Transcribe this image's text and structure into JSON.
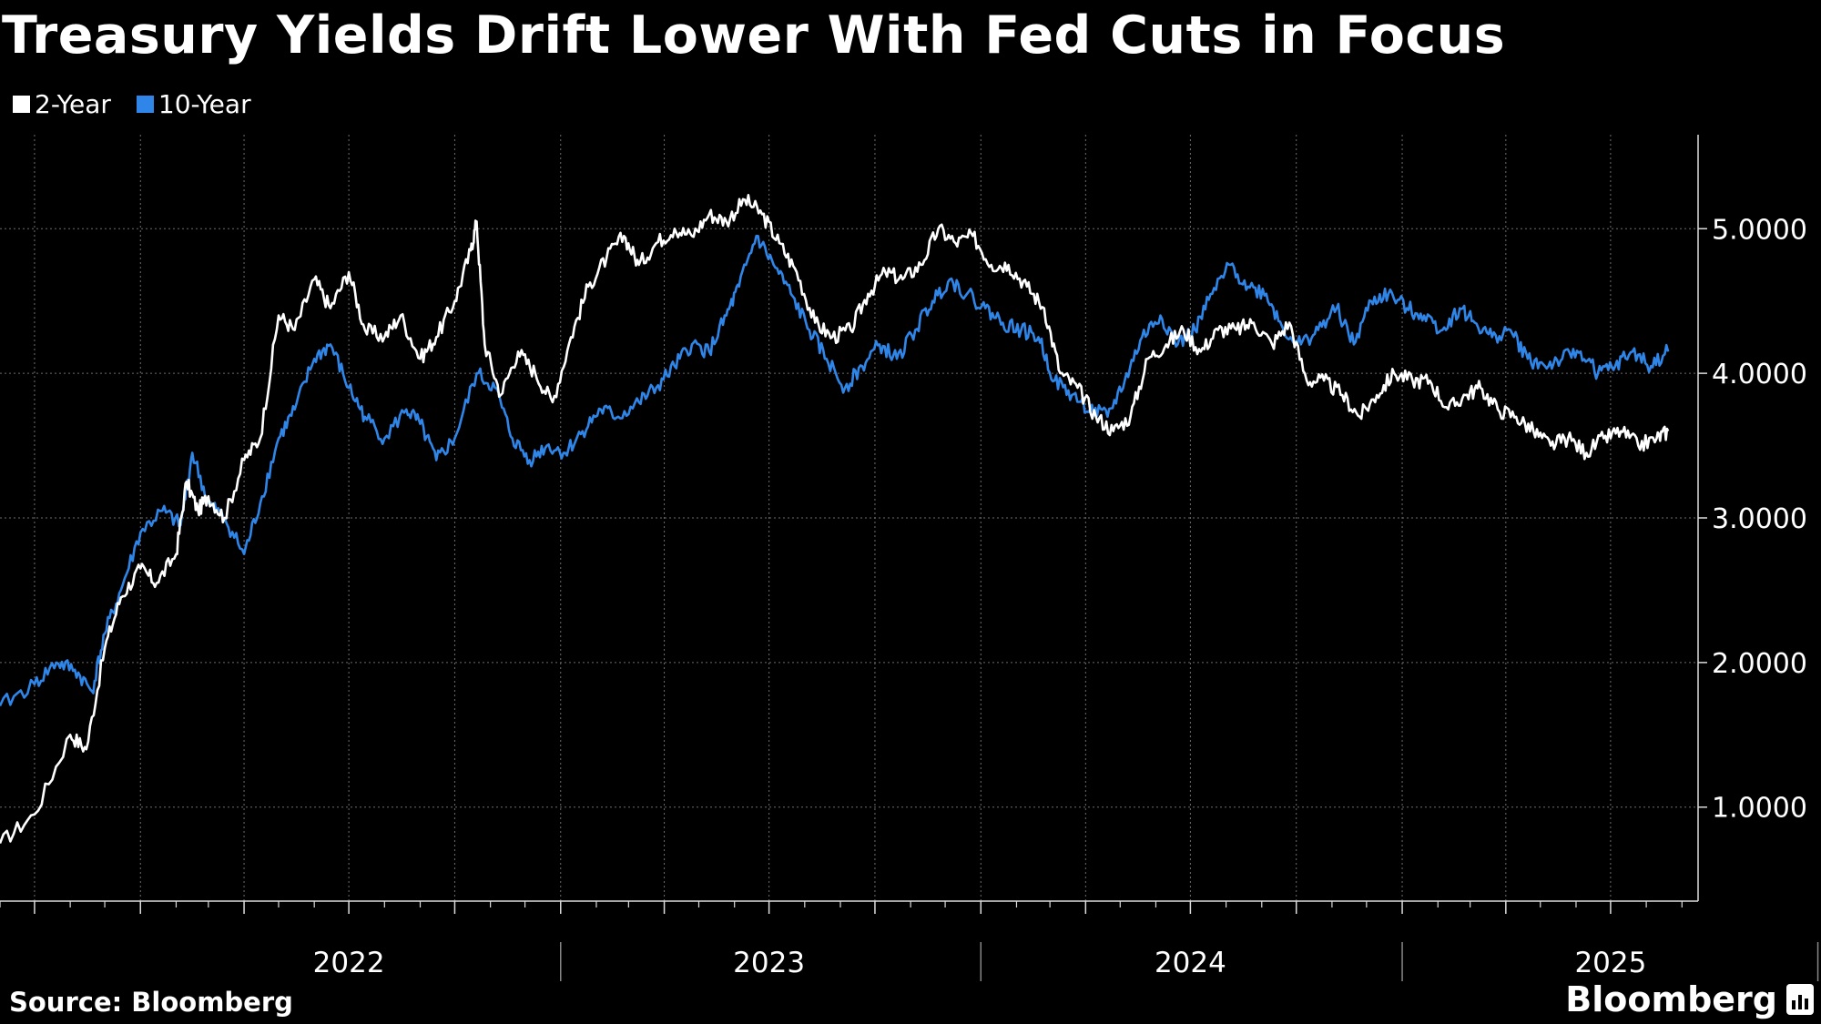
{
  "title": "Treasury Yields Drift Lower With Fed Cuts in Focus",
  "source": "Source: Bloomberg",
  "brand": "Bloomberg",
  "colors": {
    "two_year": "#ffffff",
    "ten_year": "#2f86e8",
    "background": "#000000",
    "grid": "#6e6e6e"
  },
  "chart_data": {
    "type": "line",
    "title": "Treasury Yields Drift Lower With Fed Cuts in Focus",
    "xlabel": "",
    "ylabel": "",
    "year_labels": [
      "2022",
      "2023",
      "2024",
      "2025"
    ],
    "yticks": [
      "1.0000",
      "2.0000",
      "3.0000",
      "4.0000",
      "5.0000"
    ],
    "ylim": [
      0.35,
      5.65
    ],
    "xlim": [
      "2021-09-01",
      "2025-09-15"
    ],
    "y_axis_side": "right",
    "grid": true,
    "legend_position": "top-left",
    "series": [
      {
        "name": "2-Year",
        "color": "#ffffff",
        "points": [
          [
            "2021-09-01",
            0.75
          ],
          [
            "2021-10-01",
            0.95
          ],
          [
            "2021-11-01",
            1.5
          ],
          [
            "2021-11-15",
            1.4
          ],
          [
            "2021-12-01",
            2.1
          ],
          [
            "2021-12-15",
            2.45
          ],
          [
            "2022-01-01",
            2.65
          ],
          [
            "2022-01-15",
            2.55
          ],
          [
            "2022-02-01",
            2.75
          ],
          [
            "2022-02-10",
            3.25
          ],
          [
            "2022-02-20",
            3.05
          ],
          [
            "2022-03-01",
            3.15
          ],
          [
            "2022-03-15",
            3.0
          ],
          [
            "2022-04-01",
            3.4
          ],
          [
            "2022-04-15",
            3.55
          ],
          [
            "2022-05-01",
            4.4
          ],
          [
            "2022-05-15",
            4.3
          ],
          [
            "2022-06-01",
            4.65
          ],
          [
            "2022-06-15",
            4.45
          ],
          [
            "2022-07-01",
            4.7
          ],
          [
            "2022-07-15",
            4.3
          ],
          [
            "2022-08-01",
            4.25
          ],
          [
            "2022-08-15",
            4.4
          ],
          [
            "2022-09-01",
            4.1
          ],
          [
            "2022-09-15",
            4.25
          ],
          [
            "2022-10-01",
            4.5
          ],
          [
            "2022-10-15",
            4.85
          ],
          [
            "2022-10-20",
            5.05
          ],
          [
            "2022-10-27",
            4.2
          ],
          [
            "2022-11-10",
            3.85
          ],
          [
            "2022-11-25",
            4.15
          ],
          [
            "2022-12-10",
            4.0
          ],
          [
            "2022-12-25",
            3.8
          ],
          [
            "2023-01-10",
            4.25
          ],
          [
            "2023-01-25",
            4.6
          ],
          [
            "2023-02-10",
            4.8
          ],
          [
            "2023-02-25",
            4.95
          ],
          [
            "2023-03-10",
            4.75
          ],
          [
            "2023-03-25",
            4.9
          ],
          [
            "2023-04-10",
            5.0
          ],
          [
            "2023-04-25",
            4.95
          ],
          [
            "2023-05-10",
            5.1
          ],
          [
            "2023-05-25",
            5.05
          ],
          [
            "2023-06-10",
            5.2
          ],
          [
            "2023-06-25",
            5.1
          ],
          [
            "2023-07-10",
            4.9
          ],
          [
            "2023-07-25",
            4.7
          ],
          [
            "2023-08-10",
            4.35
          ],
          [
            "2023-08-25",
            4.25
          ],
          [
            "2023-09-10",
            4.3
          ],
          [
            "2023-09-25",
            4.55
          ],
          [
            "2023-10-10",
            4.7
          ],
          [
            "2023-10-25",
            4.65
          ],
          [
            "2023-11-10",
            4.75
          ],
          [
            "2023-11-25",
            5.0
          ],
          [
            "2023-12-10",
            4.9
          ],
          [
            "2023-12-25",
            4.95
          ],
          [
            "2024-01-10",
            4.75
          ],
          [
            "2024-01-25",
            4.75
          ],
          [
            "2024-02-10",
            4.6
          ],
          [
            "2024-02-25",
            4.45
          ],
          [
            "2024-03-10",
            4.0
          ],
          [
            "2024-03-25",
            3.9
          ],
          [
            "2024-04-10",
            3.7
          ],
          [
            "2024-04-25",
            3.6
          ],
          [
            "2024-05-10",
            3.7
          ],
          [
            "2024-05-25",
            4.1
          ],
          [
            "2024-06-10",
            4.2
          ],
          [
            "2024-06-25",
            4.3
          ],
          [
            "2024-07-10",
            4.15
          ],
          [
            "2024-07-25",
            4.3
          ],
          [
            "2024-08-10",
            4.3
          ],
          [
            "2024-08-25",
            4.35
          ],
          [
            "2024-09-10",
            4.2
          ],
          [
            "2024-09-25",
            4.35
          ],
          [
            "2024-10-10",
            3.95
          ],
          [
            "2024-10-25",
            3.95
          ],
          [
            "2024-11-10",
            3.85
          ],
          [
            "2024-11-25",
            3.7
          ],
          [
            "2024-12-10",
            3.85
          ],
          [
            "2024-12-25",
            4.0
          ],
          [
            "2025-01-10",
            3.95
          ],
          [
            "2025-01-25",
            3.95
          ],
          [
            "2025-02-10",
            3.75
          ],
          [
            "2025-02-25",
            3.85
          ],
          [
            "2025-03-10",
            3.9
          ],
          [
            "2025-03-25",
            3.75
          ],
          [
            "2025-04-10",
            3.7
          ],
          [
            "2025-04-25",
            3.6
          ],
          [
            "2025-05-10",
            3.5
          ],
          [
            "2025-05-25",
            3.55
          ],
          [
            "2025-06-10",
            3.45
          ],
          [
            "2025-06-25",
            3.55
          ],
          [
            "2025-07-10",
            3.6
          ],
          [
            "2025-07-25",
            3.5
          ],
          [
            "2025-08-10",
            3.55
          ],
          [
            "2025-08-20",
            3.6
          ]
        ]
      },
      {
        "name": "10-Year",
        "color": "#2f86e8",
        "points": [
          [
            "2021-09-01",
            1.7
          ],
          [
            "2021-10-01",
            1.85
          ],
          [
            "2021-10-20",
            2.0
          ],
          [
            "2021-11-05",
            1.95
          ],
          [
            "2021-11-20",
            1.8
          ],
          [
            "2021-12-01",
            2.2
          ],
          [
            "2021-12-15",
            2.5
          ],
          [
            "2022-01-01",
            2.9
          ],
          [
            "2022-01-20",
            3.05
          ],
          [
            "2022-02-05",
            2.95
          ],
          [
            "2022-02-15",
            3.45
          ],
          [
            "2022-03-01",
            3.1
          ],
          [
            "2022-03-15",
            3.0
          ],
          [
            "2022-04-01",
            2.75
          ],
          [
            "2022-04-15",
            3.1
          ],
          [
            "2022-05-01",
            3.55
          ],
          [
            "2022-05-15",
            3.75
          ],
          [
            "2022-06-01",
            4.1
          ],
          [
            "2022-06-15",
            4.2
          ],
          [
            "2022-07-01",
            3.9
          ],
          [
            "2022-07-15",
            3.7
          ],
          [
            "2022-08-01",
            3.55
          ],
          [
            "2022-08-20",
            3.75
          ],
          [
            "2022-09-01",
            3.65
          ],
          [
            "2022-09-15",
            3.4
          ],
          [
            "2022-10-01",
            3.55
          ],
          [
            "2022-10-20",
            4.0
          ],
          [
            "2022-11-05",
            3.9
          ],
          [
            "2022-11-20",
            3.55
          ],
          [
            "2022-12-05",
            3.4
          ],
          [
            "2022-12-20",
            3.5
          ],
          [
            "2023-01-05",
            3.45
          ],
          [
            "2023-01-20",
            3.6
          ],
          [
            "2023-02-05",
            3.75
          ],
          [
            "2023-02-20",
            3.7
          ],
          [
            "2023-03-10",
            3.8
          ],
          [
            "2023-03-25",
            3.9
          ],
          [
            "2023-04-10",
            4.05
          ],
          [
            "2023-04-25",
            4.2
          ],
          [
            "2023-05-10",
            4.15
          ],
          [
            "2023-05-25",
            4.4
          ],
          [
            "2023-06-05",
            4.6
          ],
          [
            "2023-06-20",
            4.95
          ],
          [
            "2023-07-05",
            4.75
          ],
          [
            "2023-07-20",
            4.55
          ],
          [
            "2023-08-05",
            4.3
          ],
          [
            "2023-08-20",
            4.1
          ],
          [
            "2023-09-05",
            3.9
          ],
          [
            "2023-09-20",
            4.05
          ],
          [
            "2023-10-05",
            4.2
          ],
          [
            "2023-10-20",
            4.1
          ],
          [
            "2023-11-05",
            4.3
          ],
          [
            "2023-11-20",
            4.5
          ],
          [
            "2023-12-05",
            4.65
          ],
          [
            "2023-12-20",
            4.55
          ],
          [
            "2024-01-05",
            4.45
          ],
          [
            "2024-01-20",
            4.35
          ],
          [
            "2024-02-05",
            4.3
          ],
          [
            "2024-02-20",
            4.25
          ],
          [
            "2024-03-05",
            3.95
          ],
          [
            "2024-03-20",
            3.85
          ],
          [
            "2024-04-05",
            3.75
          ],
          [
            "2024-04-20",
            3.7
          ],
          [
            "2024-05-05",
            3.95
          ],
          [
            "2024-05-20",
            4.25
          ],
          [
            "2024-06-05",
            4.4
          ],
          [
            "2024-06-20",
            4.2
          ],
          [
            "2024-07-05",
            4.3
          ],
          [
            "2024-07-20",
            4.55
          ],
          [
            "2024-08-05",
            4.75
          ],
          [
            "2024-08-20",
            4.6
          ],
          [
            "2024-09-05",
            4.55
          ],
          [
            "2024-09-20",
            4.3
          ],
          [
            "2024-10-05",
            4.2
          ],
          [
            "2024-10-20",
            4.3
          ],
          [
            "2024-11-05",
            4.45
          ],
          [
            "2024-11-20",
            4.2
          ],
          [
            "2024-12-05",
            4.5
          ],
          [
            "2024-12-20",
            4.55
          ],
          [
            "2025-01-05",
            4.45
          ],
          [
            "2025-01-20",
            4.4
          ],
          [
            "2025-02-05",
            4.3
          ],
          [
            "2025-02-20",
            4.45
          ],
          [
            "2025-03-05",
            4.35
          ],
          [
            "2025-03-20",
            4.25
          ],
          [
            "2025-04-05",
            4.3
          ],
          [
            "2025-04-20",
            4.1
          ],
          [
            "2025-05-05",
            4.05
          ],
          [
            "2025-05-20",
            4.1
          ],
          [
            "2025-06-05",
            4.15
          ],
          [
            "2025-06-20",
            4.0
          ],
          [
            "2025-07-05",
            4.05
          ],
          [
            "2025-07-20",
            4.15
          ],
          [
            "2025-08-05",
            4.05
          ],
          [
            "2025-08-20",
            4.15
          ]
        ]
      }
    ]
  }
}
